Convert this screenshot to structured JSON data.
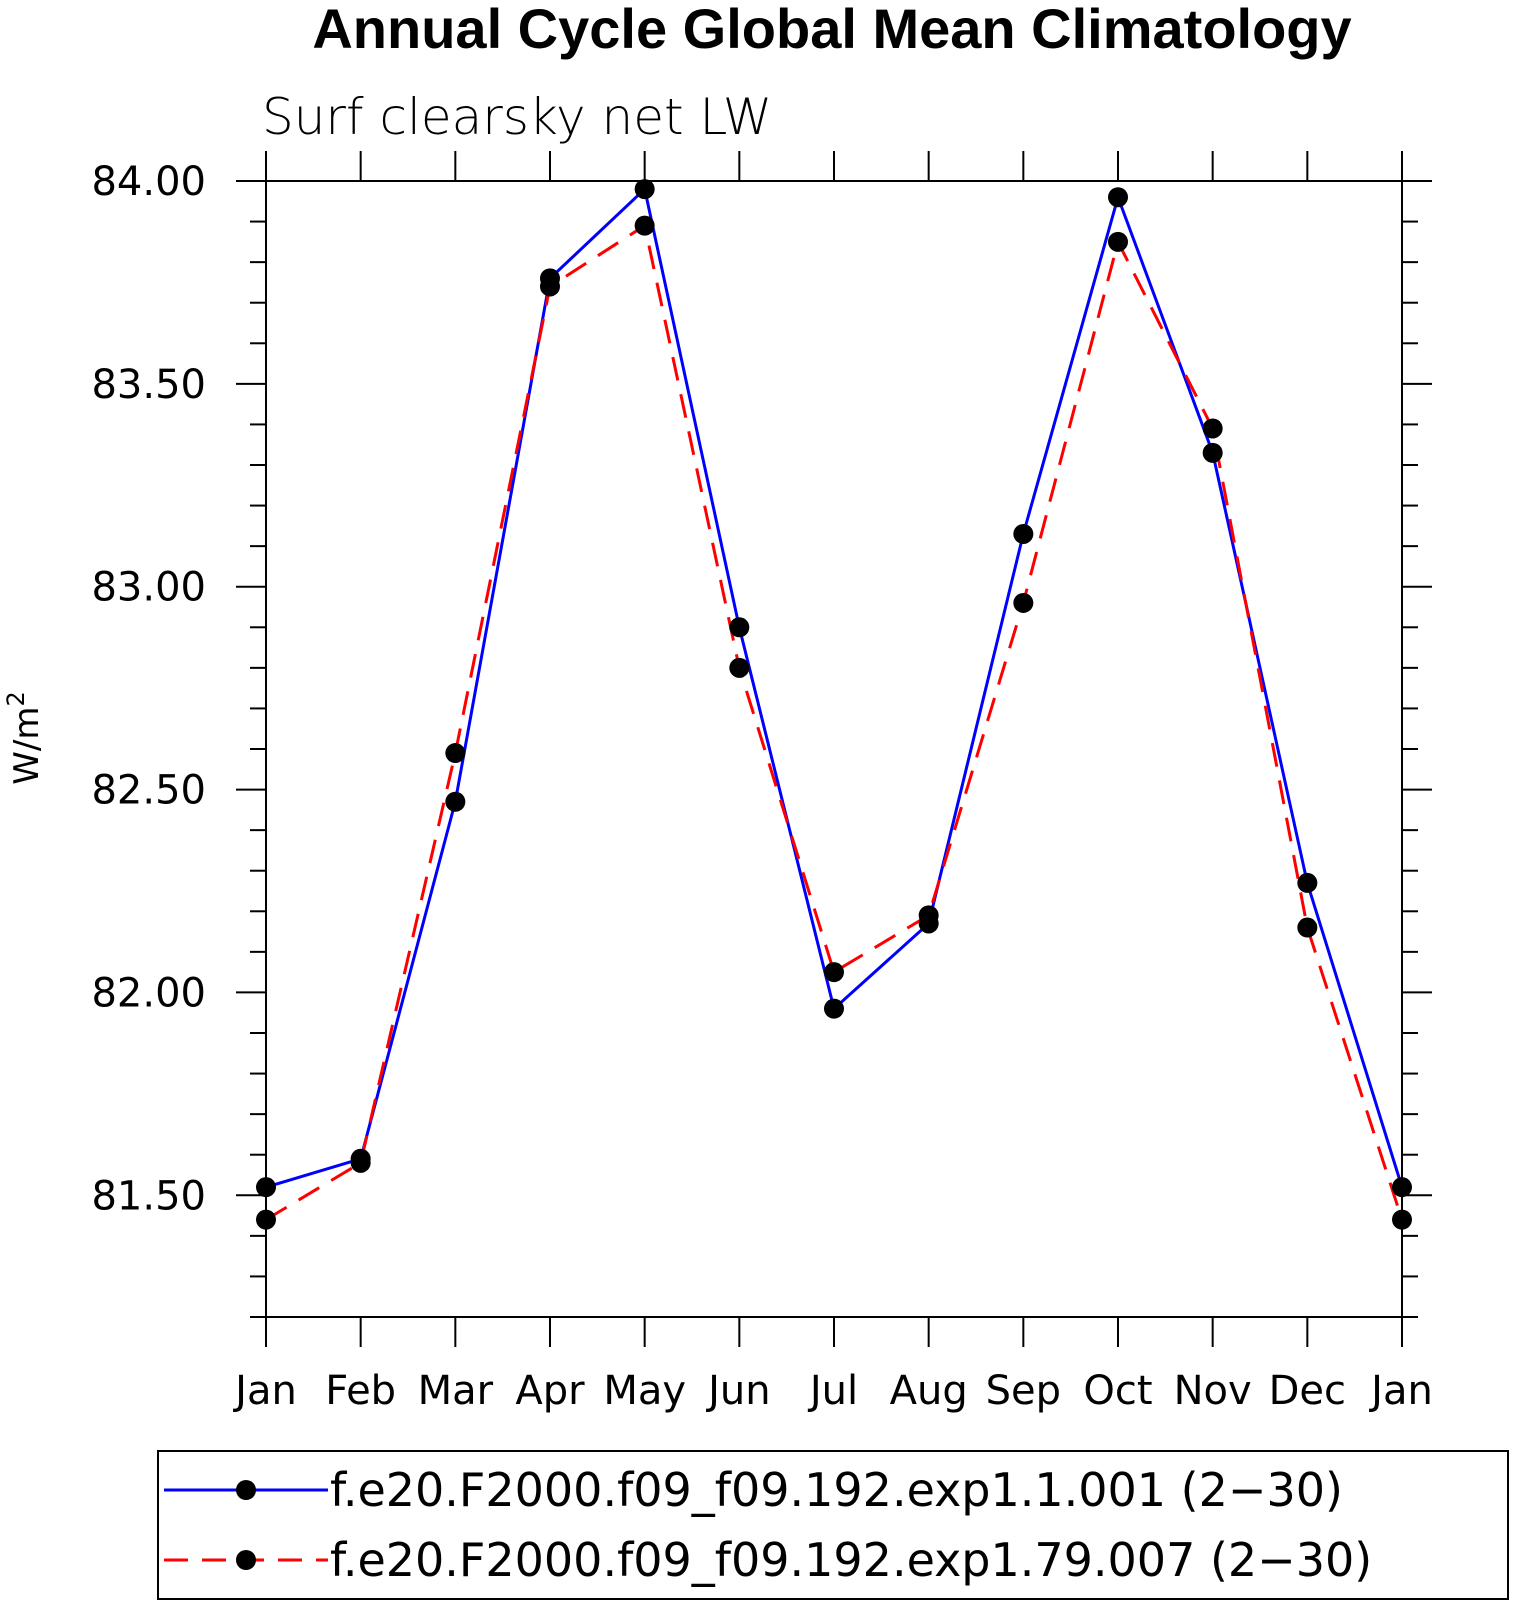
{
  "chart_data": {
    "type": "line",
    "title": "Annual Cycle Global Mean Climatology",
    "subtitle": "Surf clearsky net LW",
    "ylabel_base": "W/m",
    "ylabel_sup": "2",
    "xlabel": "",
    "categories": [
      "Jan",
      "Feb",
      "Mar",
      "Apr",
      "May",
      "Jun",
      "Jul",
      "Aug",
      "Sep",
      "Oct",
      "Nov",
      "Dec",
      "Jan"
    ],
    "ylim": [
      81.2,
      84.0
    ],
    "yticks": [
      81.5,
      82.0,
      82.5,
      83.0,
      83.5,
      84.0
    ],
    "ytick_labels": [
      "81.50",
      "82.00",
      "82.50",
      "83.00",
      "83.50",
      "84.00"
    ],
    "series": [
      {
        "name": "f.e20.F2000.f09_f09.192.exp1.1.001 (2−30)",
        "color": "#0000ff",
        "style": "solid",
        "values": [
          81.52,
          81.59,
          82.47,
          83.76,
          83.98,
          82.9,
          81.96,
          82.17,
          83.13,
          83.96,
          83.33,
          82.27,
          81.52
        ]
      },
      {
        "name": "f.e20.F2000.f09_f09.192.exp1.79.007 (2−30)",
        "color": "#ff0000",
        "style": "dashed",
        "values": [
          81.44,
          81.58,
          82.59,
          83.74,
          83.89,
          82.8,
          82.05,
          82.19,
          82.96,
          83.85,
          83.39,
          82.16,
          81.44
        ]
      }
    ],
    "legend_position": "bottom"
  }
}
